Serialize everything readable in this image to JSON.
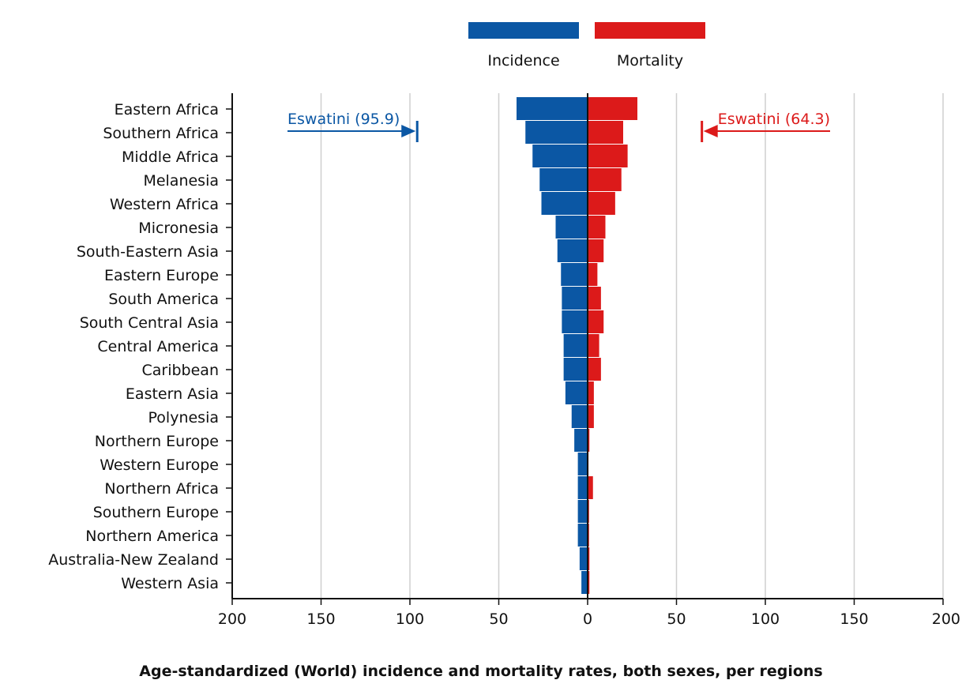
{
  "chart_data": {
    "type": "bar",
    "orientation": "horizontal-diverging",
    "title": "Age-standardized (World) incidence and mortality rates, both sexes, per regions",
    "categories": [
      "Eastern Africa",
      "Southern Africa",
      "Middle Africa",
      "Melanesia",
      "Western Africa",
      "Micronesia",
      "South-Eastern Asia",
      "Eastern Europe",
      "South America",
      "South Central Asia",
      "Central America",
      "Caribbean",
      "Eastern Asia",
      "Polynesia",
      "Northern Europe",
      "Western Europe",
      "Northern Africa",
      "Southern Europe",
      "Northern America",
      "Australia-New Zealand",
      "Western Asia"
    ],
    "series": [
      {
        "name": "Incidence",
        "color": "#0b57a4",
        "side": "left",
        "values": [
          40,
          35,
          31,
          27,
          26,
          18,
          17,
          15,
          14.5,
          14.5,
          13.5,
          13.5,
          12.5,
          9,
          7.5,
          5.5,
          5.5,
          5.5,
          5.5,
          4.5,
          3.5
        ]
      },
      {
        "name": "Mortality",
        "color": "#dc1a1a",
        "side": "right",
        "values": [
          28,
          20,
          22.5,
          19,
          15.5,
          10,
          9,
          5.5,
          7.5,
          9,
          6.5,
          7.5,
          3.5,
          3.5,
          1,
          0.5,
          3,
          0.8,
          0.8,
          1,
          1
        ]
      }
    ],
    "x_range": [
      -200,
      200
    ],
    "x_ticks": [
      -200,
      -150,
      -100,
      -50,
      0,
      50,
      100,
      150,
      200
    ],
    "x_tick_labels": [
      "200",
      "150",
      "100",
      "50",
      "0",
      "50",
      "100",
      "150",
      "200"
    ],
    "grid": "vertical",
    "legend_position": "top-center",
    "annotations": [
      {
        "text": "Eswatini (95.9)",
        "series": "Incidence",
        "value": 95.9,
        "category": "Southern Africa",
        "color": "#0b57a4"
      },
      {
        "text": "Eswatini (64.3)",
        "series": "Mortality",
        "value": 64.3,
        "category": "Southern Africa",
        "color": "#dc1a1a"
      }
    ]
  }
}
